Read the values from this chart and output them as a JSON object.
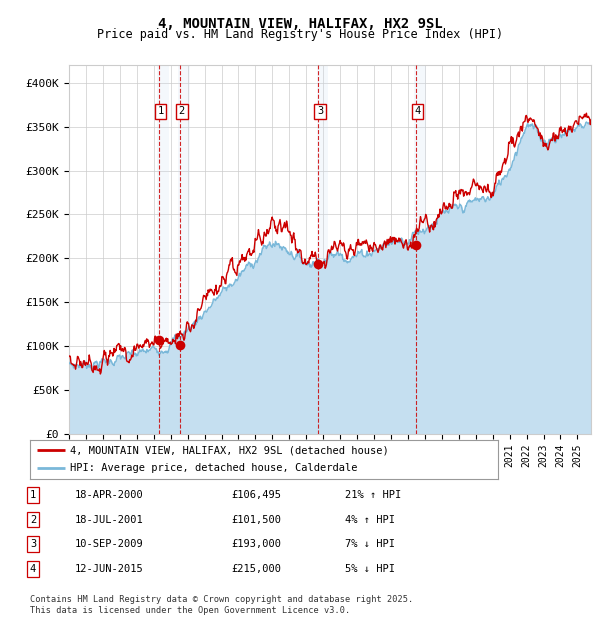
{
  "title": "4, MOUNTAIN VIEW, HALIFAX, HX2 9SL",
  "subtitle": "Price paid vs. HM Land Registry's House Price Index (HPI)",
  "ylabel_ticks": [
    "£0",
    "£50K",
    "£100K",
    "£150K",
    "£200K",
    "£250K",
    "£300K",
    "£350K",
    "£400K"
  ],
  "ytick_vals": [
    0,
    50000,
    100000,
    150000,
    200000,
    250000,
    300000,
    350000,
    400000
  ],
  "ylim": [
    0,
    420000
  ],
  "xlim_start": 1995.0,
  "xlim_end": 2025.8,
  "legend_line1": "4, MOUNTAIN VIEW, HALIFAX, HX2 9SL (detached house)",
  "legend_line2": "HPI: Average price, detached house, Calderdale",
  "transactions": [
    {
      "num": 1,
      "date": "18-APR-2000",
      "price": 106495,
      "hpi_pct": "21% ↑ HPI",
      "year": 2000.29
    },
    {
      "num": 2,
      "date": "18-JUL-2001",
      "price": 101500,
      "hpi_pct": "4% ↑ HPI",
      "year": 2001.54
    },
    {
      "num": 3,
      "date": "10-SEP-2009",
      "price": 193000,
      "hpi_pct": "7% ↓ HPI",
      "year": 2009.7
    },
    {
      "num": 4,
      "date": "12-JUN-2015",
      "price": 215000,
      "hpi_pct": "5% ↓ HPI",
      "year": 2015.45
    }
  ],
  "footnote1": "Contains HM Land Registry data © Crown copyright and database right 2025.",
  "footnote2": "This data is licensed under the Open Government Licence v3.0.",
  "hpi_color": "#7ab8d9",
  "hpi_fill_color": "#c5dff0",
  "price_color": "#cc0000",
  "marker_color": "#cc0000",
  "vline_color": "#cc0000",
  "vband_color": "#ddeeff",
  "grid_color": "#cccccc",
  "background_color": "#ffffff",
  "hpi_knots_x": [
    1995,
    1996,
    1997,
    1998,
    1999,
    2000,
    2001,
    2002,
    2003,
    2004,
    2005,
    2006,
    2007,
    2008,
    2009,
    2010,
    2011,
    2012,
    2013,
    2014,
    2015,
    2016,
    2017,
    2018,
    2019,
    2020,
    2021,
    2022,
    2023,
    2024,
    2025.5
  ],
  "hpi_knots_y": [
    78000,
    80000,
    82000,
    86000,
    90000,
    96000,
    104000,
    118000,
    140000,
    160000,
    178000,
    200000,
    218000,
    210000,
    195000,
    200000,
    205000,
    203000,
    210000,
    218000,
    225000,
    235000,
    248000,
    255000,
    265000,
    270000,
    305000,
    355000,
    335000,
    340000,
    355000
  ],
  "price_knots_x": [
    1995,
    1996,
    1997,
    1998,
    1999,
    2000,
    2001,
    2002,
    2003,
    2004,
    2005,
    2006,
    2007,
    2008,
    2009,
    2010,
    2011,
    2012,
    2013,
    2014,
    2015,
    2016,
    2017,
    2018,
    2019,
    2020,
    2021,
    2022,
    2023,
    2024,
    2025.5
  ],
  "price_knots_y": [
    82000,
    84000,
    87000,
    92000,
    97000,
    107000,
    103000,
    122000,
    148000,
    165000,
    185000,
    210000,
    245000,
    235000,
    196000,
    205000,
    210000,
    208000,
    215000,
    220000,
    218000,
    240000,
    255000,
    265000,
    275000,
    280000,
    315000,
    370000,
    330000,
    345000,
    360000
  ]
}
